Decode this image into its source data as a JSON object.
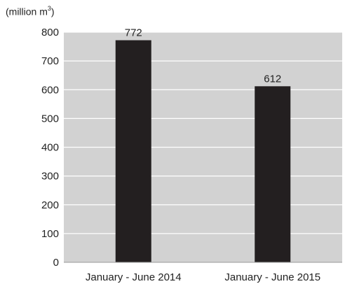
{
  "chart_data": {
    "type": "bar",
    "title": "",
    "xlabel": "",
    "ylabel": "",
    "unit_label": {
      "text": "(million m",
      "superscript": "3",
      "suffix": ")"
    },
    "categories": [
      "January - June 2014",
      "January - June 2015"
    ],
    "values": [
      772,
      612
    ],
    "data_labels": [
      "772",
      "612"
    ],
    "ylim": [
      0,
      800
    ],
    "yticks": [
      0,
      100,
      200,
      300,
      400,
      500,
      600,
      700,
      800
    ],
    "grid": true,
    "plot_background": "#d2d2d2",
    "bar_color": "#231f20",
    "grid_color": "#ffffff"
  }
}
